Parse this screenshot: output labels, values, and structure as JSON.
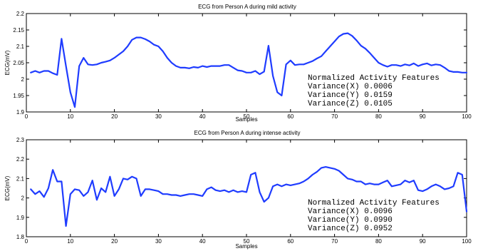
{
  "chart_data": [
    {
      "type": "line",
      "title": "ECG from Person A during mild activity",
      "xlabel": "Samples",
      "ylabel": "ECG(mV)",
      "xlim": [
        0,
        100
      ],
      "ylim": [
        1.9,
        2.2
      ],
      "xticks": [
        "0",
        "10",
        "20",
        "30",
        "40",
        "50",
        "60",
        "70",
        "80",
        "90",
        "100"
      ],
      "yticks": [
        "1.9",
        "1.95",
        "2",
        "2.05",
        "2.1",
        "2.15",
        "2.2"
      ],
      "grid": false,
      "color": "#1f3cff",
      "annotation": {
        "heading": "Normalized Activity Features",
        "lines": [
          "Variance(X) 0.0006",
          "Variance(Y) 0.0159",
          "Variance(Z) 0.0105"
        ]
      },
      "series": [
        {
          "x": [
            1,
            2,
            3,
            4,
            5,
            6,
            7,
            8,
            9,
            10,
            11,
            12,
            13,
            14,
            15,
            16,
            17,
            18,
            19,
            20,
            21,
            22,
            23,
            24,
            25,
            26,
            27,
            28,
            29,
            30,
            31,
            32,
            33,
            34,
            35,
            36,
            37,
            38,
            39,
            40,
            41,
            42,
            43,
            44,
            45,
            46,
            47,
            48,
            49,
            50,
            51,
            52,
            53,
            54,
            55,
            56,
            57,
            58,
            59,
            60,
            61,
            62,
            63,
            64,
            65,
            66,
            67,
            68,
            69,
            70,
            71,
            72,
            73,
            74,
            75,
            76,
            77,
            78,
            79,
            80,
            81,
            82,
            83,
            84,
            85,
            86,
            87,
            88,
            89,
            90,
            91,
            92,
            93,
            94,
            95,
            96,
            97,
            98,
            99,
            100
          ],
          "values": [
            2.02,
            2.025,
            2.02,
            2.025,
            2.025,
            2.018,
            2.013,
            2.123,
            2.04,
            1.96,
            1.915,
            2.04,
            2.065,
            2.045,
            2.043,
            2.045,
            2.05,
            2.053,
            2.057,
            2.065,
            2.075,
            2.085,
            2.1,
            2.12,
            2.127,
            2.127,
            2.122,
            2.115,
            2.105,
            2.1,
            2.085,
            2.065,
            2.05,
            2.04,
            2.035,
            2.035,
            2.033,
            2.037,
            2.035,
            2.04,
            2.037,
            2.04,
            2.04,
            2.04,
            2.043,
            2.043,
            2.035,
            2.027,
            2.025,
            2.02,
            2.02,
            2.025,
            2.015,
            2.023,
            2.102,
            2.01,
            1.96,
            1.95,
            2.045,
            2.057,
            2.043,
            2.045,
            2.045,
            2.05,
            2.055,
            2.063,
            2.07,
            2.085,
            2.1,
            2.115,
            2.13,
            2.138,
            2.14,
            2.132,
            2.118,
            2.102,
            2.093,
            2.08,
            2.065,
            2.05,
            2.043,
            2.038,
            2.043,
            2.043,
            2.04,
            2.045,
            2.042,
            2.048,
            2.04,
            2.045,
            2.048,
            2.042,
            2.045,
            2.043,
            2.035,
            2.025,
            2.022,
            2.022,
            2.02,
            2.02
          ]
        }
      ]
    },
    {
      "type": "line",
      "title": "ECG from Person A during intense activity",
      "xlabel": "Samples",
      "ylabel": "ECG(mV)",
      "xlim": [
        0,
        100
      ],
      "ylim": [
        1.8,
        2.3
      ],
      "xticks": [
        "0",
        "10",
        "20",
        "30",
        "40",
        "50",
        "60",
        "70",
        "80",
        "90",
        "100"
      ],
      "yticks": [
        "1.8",
        "1.9",
        "2",
        "2.1",
        "2.2",
        "2.3"
      ],
      "grid": false,
      "color": "#1f3cff",
      "annotation": {
        "heading": "Normalized Activity Features",
        "lines": [
          "Variance(X)  0.0096",
          "Variance(Y)  0.0990",
          "Variance(Z)  0.0952"
        ]
      },
      "series": [
        {
          "x": [
            1,
            2,
            3,
            4,
            5,
            6,
            7,
            8,
            9,
            10,
            11,
            12,
            13,
            14,
            15,
            16,
            17,
            18,
            19,
            20,
            21,
            22,
            23,
            24,
            25,
            26,
            27,
            28,
            29,
            30,
            31,
            32,
            33,
            34,
            35,
            36,
            37,
            38,
            39,
            40,
            41,
            42,
            43,
            44,
            45,
            46,
            47,
            48,
            49,
            50,
            51,
            52,
            53,
            54,
            55,
            56,
            57,
            58,
            59,
            60,
            61,
            62,
            63,
            64,
            65,
            66,
            67,
            68,
            69,
            70,
            71,
            72,
            73,
            74,
            75,
            76,
            77,
            78,
            79,
            80,
            81,
            82,
            83,
            84,
            85,
            86,
            87,
            88,
            89,
            90,
            91,
            92,
            93,
            94,
            95,
            96,
            97,
            98,
            99,
            100
          ],
          "values": [
            2.045,
            2.02,
            2.035,
            2.005,
            2.05,
            2.145,
            2.085,
            2.085,
            1.855,
            2.02,
            2.045,
            2.04,
            2.01,
            2.03,
            2.09,
            1.99,
            2.05,
            2.03,
            2.11,
            2.01,
            2.045,
            2.1,
            2.095,
            2.11,
            2.1,
            2.01,
            2.045,
            2.045,
            2.04,
            2.035,
            2.02,
            2.02,
            2.015,
            2.015,
            2.01,
            2.015,
            2.02,
            2.02,
            2.015,
            2.01,
            2.045,
            2.055,
            2.04,
            2.035,
            2.04,
            2.03,
            2.04,
            2.03,
            2.035,
            2.03,
            2.12,
            2.13,
            2.03,
            1.98,
            2.0,
            2.06,
            2.07,
            2.06,
            2.07,
            2.065,
            2.07,
            2.075,
            2.085,
            2.1,
            2.12,
            2.135,
            2.155,
            2.16,
            2.155,
            2.15,
            2.14,
            2.12,
            2.1,
            2.095,
            2.085,
            2.085,
            2.07,
            2.075,
            2.07,
            2.07,
            2.08,
            2.09,
            2.06,
            2.065,
            2.07,
            2.09,
            2.08,
            2.09,
            2.04,
            2.035,
            2.045,
            2.06,
            2.07,
            2.06,
            2.045,
            2.05,
            2.06,
            2.13,
            2.12,
            1.93
          ]
        }
      ]
    }
  ]
}
